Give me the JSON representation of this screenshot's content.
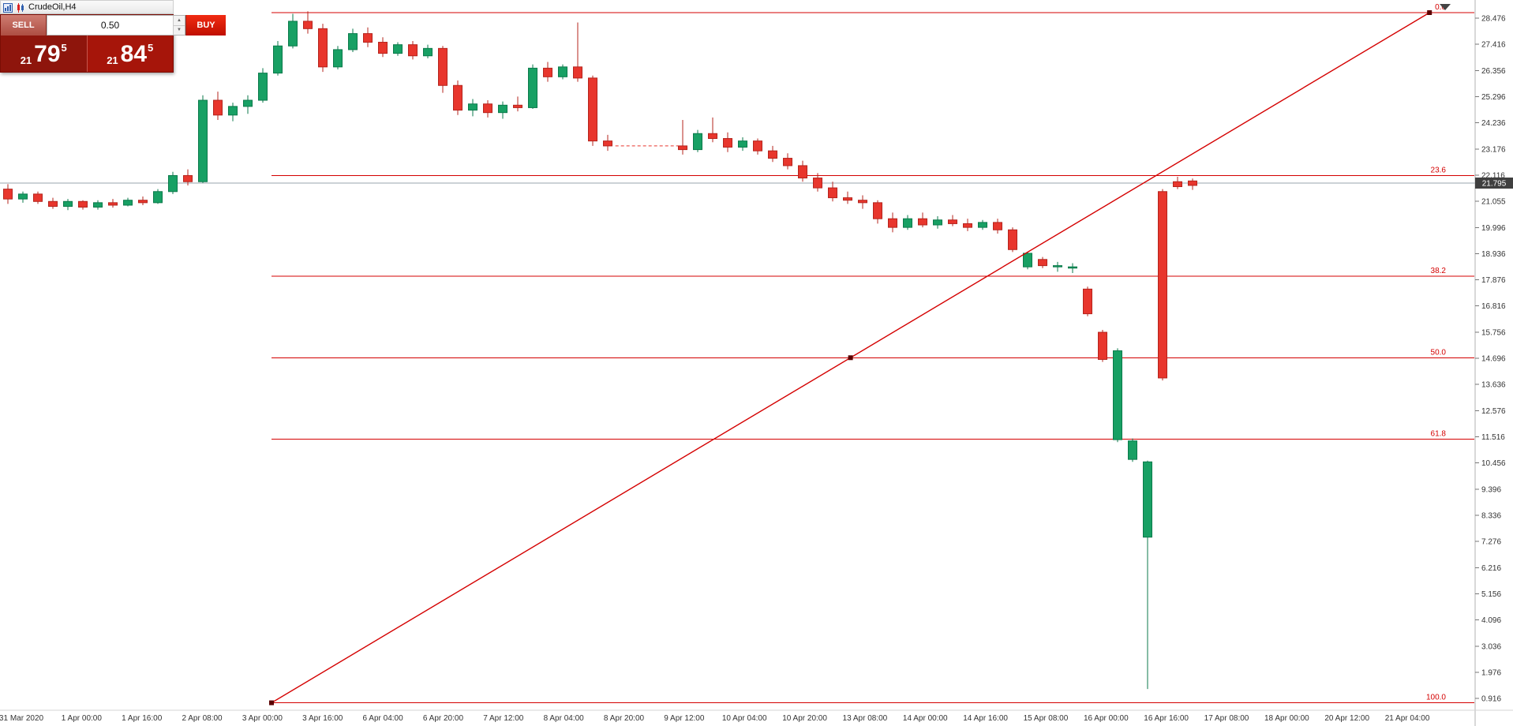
{
  "window": {
    "title": "CrudeOil,H4"
  },
  "trade_panel": {
    "sell_label": "SELL",
    "buy_label": "BUY",
    "volume": "0.50",
    "sell_price": {
      "whole": "21",
      "main": "79",
      "sup": "5"
    },
    "buy_price": {
      "whole": "21",
      "main": "84",
      "sup": "5"
    }
  },
  "chart_data": {
    "type": "candlestick",
    "symbol": "CrudeOil",
    "timeframe": "H4",
    "colors": {
      "up": "#18a064",
      "up_border": "#0b7a4b",
      "down": "#e8362d",
      "down_border": "#b5241d",
      "fib": "#d40000",
      "current_price_line": "#9aa5ad",
      "tag_bg": "#3f3f3f",
      "axis_text": "#333333"
    },
    "price_axis_labels": [
      "28.476",
      "27.416",
      "26.356",
      "25.296",
      "24.236",
      "23.176",
      "22.116",
      "21.055",
      "19.996",
      "18.936",
      "17.876",
      "16.816",
      "15.756",
      "14.696",
      "13.636",
      "12.576",
      "11.516",
      "10.456",
      "9.396",
      "8.336",
      "7.276",
      "6.216",
      "5.156",
      "4.096",
      "3.036",
      "1.976",
      "0.916"
    ],
    "time_axis_labels": [
      "31 Mar 2020",
      "1 Apr 00:00",
      "1 Apr 16:00",
      "2 Apr 08:00",
      "3 Apr 00:00",
      "3 Apr 16:00",
      "6 Apr 04:00",
      "6 Apr 20:00",
      "7 Apr 12:00",
      "8 Apr 04:00",
      "8 Apr 20:00",
      "9 Apr 12:00",
      "10 Apr 04:00",
      "10 Apr 20:00",
      "13 Apr 08:00",
      "14 Apr 00:00",
      "14 Apr 16:00",
      "15 Apr 08:00",
      "16 Apr 00:00",
      "16 Apr 16:00",
      "17 Apr 08:00",
      "18 Apr 00:00",
      "20 Apr 12:00",
      "21 Apr 04:00"
    ],
    "current_price": 21.795,
    "current_price_tag": "21.795",
    "candles": [
      [
        21.55,
        21.75,
        20.95,
        21.15
      ],
      [
        21.15,
        21.45,
        21.0,
        21.35
      ],
      [
        21.35,
        21.45,
        20.95,
        21.05
      ],
      [
        21.05,
        21.2,
        20.75,
        20.85
      ],
      [
        20.85,
        21.15,
        20.7,
        21.05
      ],
      [
        21.05,
        21.1,
        20.72,
        20.82
      ],
      [
        20.82,
        21.1,
        20.72,
        21.0
      ],
      [
        21.0,
        21.15,
        20.8,
        20.9
      ],
      [
        20.9,
        21.2,
        20.85,
        21.1
      ],
      [
        21.1,
        21.25,
        20.9,
        21.0
      ],
      [
        21.0,
        21.55,
        20.95,
        21.45
      ],
      [
        21.45,
        22.25,
        21.35,
        22.1
      ],
      [
        22.1,
        22.35,
        21.7,
        21.85
      ],
      [
        21.85,
        25.35,
        21.8,
        25.15
      ],
      [
        25.15,
        25.5,
        24.35,
        24.55
      ],
      [
        24.55,
        25.05,
        24.3,
        24.9
      ],
      [
        24.9,
        25.35,
        24.6,
        25.15
      ],
      [
        25.15,
        26.45,
        25.05,
        26.25
      ],
      [
        26.25,
        27.55,
        26.15,
        27.35
      ],
      [
        27.35,
        28.65,
        27.25,
        28.35
      ],
      [
        28.35,
        28.75,
        27.85,
        28.05
      ],
      [
        28.05,
        28.25,
        26.3,
        26.5
      ],
      [
        26.5,
        27.35,
        26.4,
        27.2
      ],
      [
        27.2,
        28.05,
        27.1,
        27.85
      ],
      [
        27.85,
        28.1,
        27.3,
        27.5
      ],
      [
        27.5,
        27.7,
        26.9,
        27.05
      ],
      [
        27.05,
        27.5,
        26.95,
        27.4
      ],
      [
        27.4,
        27.55,
        26.8,
        26.95
      ],
      [
        26.95,
        27.4,
        26.85,
        27.25
      ],
      [
        27.25,
        27.35,
        25.45,
        25.75
      ],
      [
        25.75,
        25.95,
        24.55,
        24.75
      ],
      [
        24.75,
        25.2,
        24.5,
        25.0
      ],
      [
        25.0,
        25.15,
        24.45,
        24.65
      ],
      [
        24.65,
        25.1,
        24.4,
        24.95
      ],
      [
        24.95,
        25.3,
        24.7,
        24.85
      ],
      [
        24.85,
        26.6,
        24.8,
        26.45
      ],
      [
        26.45,
        26.7,
        25.9,
        26.1
      ],
      [
        26.1,
        26.6,
        26.0,
        26.5
      ],
      [
        26.5,
        28.3,
        25.9,
        26.05
      ],
      [
        26.05,
        26.15,
        23.3,
        23.5
      ],
      [
        23.5,
        23.75,
        23.1,
        23.3
      ],
      null,
      null,
      null,
      null,
      [
        23.3,
        24.35,
        22.95,
        23.15
      ],
      [
        23.15,
        23.95,
        23.05,
        23.8
      ],
      [
        23.8,
        24.45,
        23.45,
        23.6
      ],
      [
        23.6,
        23.85,
        23.05,
        23.25
      ],
      [
        23.25,
        23.65,
        23.1,
        23.5
      ],
      [
        23.5,
        23.6,
        22.95,
        23.1
      ],
      [
        23.1,
        23.3,
        22.65,
        22.8
      ],
      [
        22.8,
        23.0,
        22.35,
        22.5
      ],
      [
        22.5,
        22.7,
        21.85,
        22.0
      ],
      [
        22.0,
        22.2,
        21.45,
        21.6
      ],
      [
        21.6,
        21.85,
        21.05,
        21.2
      ],
      [
        21.2,
        21.45,
        20.95,
        21.1
      ],
      [
        21.1,
        21.3,
        20.75,
        21.0
      ],
      [
        21.0,
        21.1,
        20.15,
        20.35
      ],
      [
        20.35,
        20.6,
        19.8,
        20.0
      ],
      [
        20.0,
        20.5,
        19.9,
        20.35
      ],
      [
        20.35,
        20.6,
        20.0,
        20.1
      ],
      [
        20.1,
        20.45,
        19.95,
        20.3
      ],
      [
        20.3,
        20.5,
        20.05,
        20.15
      ],
      [
        20.15,
        20.35,
        19.85,
        20.0
      ],
      [
        20.0,
        20.3,
        19.9,
        20.2
      ],
      [
        20.2,
        20.35,
        19.75,
        19.9
      ],
      [
        19.9,
        20.0,
        19.0,
        19.1
      ],
      [
        18.4,
        19.0,
        18.3,
        18.95
      ],
      [
        18.7,
        18.8,
        18.35,
        18.45
      ],
      [
        18.4,
        18.6,
        18.2,
        18.45
      ],
      [
        18.35,
        18.55,
        18.15,
        18.4
      ],
      [
        17.5,
        17.6,
        16.4,
        16.5
      ],
      [
        15.75,
        15.85,
        14.55,
        14.65
      ],
      [
        11.4,
        15.1,
        11.3,
        15.0
      ],
      [
        10.6,
        11.45,
        10.5,
        11.35
      ],
      [
        7.45,
        10.55,
        1.3,
        10.5
      ],
      [
        21.45,
        21.55,
        13.8,
        13.9
      ],
      [
        21.85,
        22.05,
        21.55,
        21.65
      ],
      [
        21.88,
        21.98,
        21.52,
        21.7
      ]
    ],
    "gap_segment": {
      "from_index": 40.3,
      "to_index": 45,
      "price": 23.3
    },
    "fibonacci": {
      "anchor_index": 17.58,
      "levels": [
        {
          "label": "0.0",
          "price": 28.7
        },
        {
          "label": "23.6",
          "price": 22.1
        },
        {
          "label": "38.2",
          "price": 18.02
        },
        {
          "label": "50.0",
          "price": 14.72
        },
        {
          "label": "61.8",
          "price": 11.42
        },
        {
          "label": "100.0",
          "price": 0.74
        }
      ]
    },
    "trend_line": {
      "start_index": 17.58,
      "start_price": 0.74,
      "end_index": 94.8,
      "end_price": 28.7
    }
  }
}
